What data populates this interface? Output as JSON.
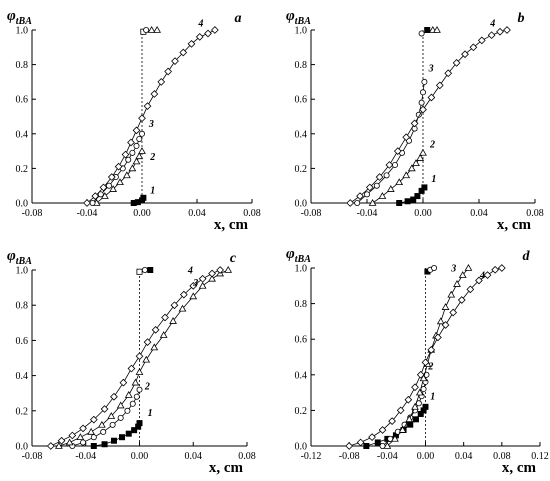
{
  "chart_data": [
    {
      "type": "line",
      "panel": "a",
      "ylabel": "φ",
      "ylabel_sub": "tBA",
      "xlabel": "x, cm",
      "xlim": [
        -0.08,
        0.08
      ],
      "ylim": [
        0,
        1.0
      ],
      "xticks": [
        "-0.08",
        "-0.04",
        "0.00",
        "0.04",
        "0.08"
      ],
      "yticks": [
        "0.0",
        "0.2",
        "0.4",
        "0.6",
        "0.8",
        "1.0"
      ],
      "vline_x": 0,
      "series": [
        {
          "name": "1",
          "marker": "square-filled",
          "x": [
            -0.006,
            -0.003,
            0.0,
            0.001
          ],
          "y": [
            0.0,
            0.005,
            0.015,
            0.03
          ]
        },
        {
          "name": "2",
          "marker": "triangle-open",
          "x": [
            -0.033,
            -0.027,
            -0.021,
            -0.016,
            -0.011,
            -0.007,
            -0.004,
            -0.002,
            0.0
          ],
          "y": [
            0.0,
            0.04,
            0.08,
            0.12,
            0.16,
            0.2,
            0.24,
            0.27,
            0.3
          ]
        },
        {
          "name": "3",
          "marker": "circle-open",
          "x": [
            -0.036,
            -0.03,
            -0.024,
            -0.019,
            -0.014,
            -0.01,
            -0.007,
            -0.004,
            -0.002,
            0.0
          ],
          "y": [
            0.0,
            0.05,
            0.1,
            0.15,
            0.2,
            0.25,
            0.29,
            0.33,
            0.37,
            0.4
          ]
        },
        {
          "name": "4",
          "marker": "diamond-open",
          "x": [
            -0.04,
            -0.034,
            -0.028,
            -0.022,
            -0.017,
            -0.012,
            -0.008,
            -0.004,
            0.0,
            0.004,
            0.009,
            0.014,
            0.019,
            0.024,
            0.03,
            0.036,
            0.042,
            0.048,
            0.053
          ],
          "y": [
            0.0,
            0.04,
            0.09,
            0.15,
            0.21,
            0.28,
            0.35,
            0.42,
            0.49,
            0.56,
            0.63,
            0.7,
            0.76,
            0.82,
            0.87,
            0.92,
            0.96,
            0.98,
            1.0
          ]
        }
      ],
      "end_markers": [
        {
          "marker": "square-open",
          "x": 0.001,
          "y": 0.99
        },
        {
          "marker": "circle-open",
          "x": 0.003,
          "y": 1.0
        },
        {
          "marker": "triangle-open",
          "x": 0.007,
          "y": 1.0
        },
        {
          "marker": "triangle-open",
          "x": 0.011,
          "y": 1.0
        }
      ],
      "labels": [
        {
          "text": "1",
          "x": 0.006,
          "y": 0.055
        },
        {
          "text": "2",
          "x": 0.006,
          "y": 0.25
        },
        {
          "text": "3",
          "x": 0.005,
          "y": 0.44
        },
        {
          "text": "4",
          "x": 0.041,
          "y": 1.02
        }
      ]
    },
    {
      "type": "line",
      "panel": "b",
      "ylabel": "φ",
      "ylabel_sub": "tBA",
      "xlabel": "x, cm",
      "xlim": [
        -0.08,
        0.08
      ],
      "ylim": [
        0,
        1.0
      ],
      "xticks": [
        "-0.08",
        "-0.04",
        "0.00",
        "0.04",
        "0.08"
      ],
      "yticks": [
        "0.0",
        "0.2",
        "0.4",
        "0.6",
        "0.8",
        "1.0"
      ],
      "vline_x": 0,
      "series": [
        {
          "name": "1",
          "marker": "square-filled",
          "x": [
            -0.017,
            -0.011,
            -0.007,
            -0.004,
            -0.001,
            0.001
          ],
          "y": [
            0.0,
            0.01,
            0.02,
            0.04,
            0.07,
            0.09
          ]
        },
        {
          "name": "2",
          "marker": "triangle-open",
          "x": [
            -0.036,
            -0.029,
            -0.023,
            -0.017,
            -0.012,
            -0.008,
            -0.005,
            -0.002,
            0.0
          ],
          "y": [
            0.0,
            0.04,
            0.08,
            0.12,
            0.16,
            0.2,
            0.23,
            0.26,
            0.29
          ]
        },
        {
          "name": "3",
          "marker": "circle-open",
          "x": [
            -0.047,
            -0.04,
            -0.033,
            -0.026,
            -0.02,
            -0.015,
            -0.01,
            -0.006,
            -0.003,
            -0.001,
            0.0,
            0.001
          ],
          "y": [
            0.0,
            0.05,
            0.1,
            0.16,
            0.22,
            0.29,
            0.36,
            0.43,
            0.51,
            0.58,
            0.64,
            0.7
          ]
        },
        {
          "name": "4",
          "marker": "diamond-open",
          "x": [
            -0.052,
            -0.045,
            -0.038,
            -0.031,
            -0.024,
            -0.018,
            -0.012,
            -0.006,
            0.0,
            0.006,
            0.012,
            0.018,
            0.024,
            0.03,
            0.036,
            0.042,
            0.049,
            0.055,
            0.06
          ],
          "y": [
            0.0,
            0.04,
            0.09,
            0.15,
            0.22,
            0.3,
            0.38,
            0.46,
            0.54,
            0.61,
            0.68,
            0.75,
            0.81,
            0.86,
            0.9,
            0.94,
            0.97,
            0.99,
            1.0
          ]
        }
      ],
      "end_markers": [
        {
          "marker": "square-filled",
          "x": 0.003,
          "y": 1.0
        },
        {
          "marker": "circle-open",
          "x": -0.001,
          "y": 0.98
        },
        {
          "marker": "triangle-open",
          "x": 0.007,
          "y": 1.0
        },
        {
          "marker": "triangle-open",
          "x": 0.01,
          "y": 1.0
        }
      ],
      "labels": [
        {
          "text": "1",
          "x": 0.006,
          "y": 0.12
        },
        {
          "text": "2",
          "x": 0.005,
          "y": 0.32
        },
        {
          "text": "3",
          "x": 0.004,
          "y": 0.76
        },
        {
          "text": "4",
          "x": 0.048,
          "y": 1.02
        }
      ]
    },
    {
      "type": "line",
      "panel": "c",
      "ylabel": "φ",
      "ylabel_sub": "tBA",
      "xlabel": "x, cm",
      "xlim": [
        -0.08,
        0.08
      ],
      "ylim": [
        0,
        1.0
      ],
      "xticks": [
        "-0.08",
        "-0.04",
        "0.00",
        "0.04",
        "0.08"
      ],
      "yticks": [
        "0.0",
        "0.2",
        "0.4",
        "0.6",
        "0.8",
        "1.0"
      ],
      "vline_x": 0,
      "series": [
        {
          "name": "1",
          "marker": "square-filled",
          "x": [
            -0.034,
            -0.026,
            -0.019,
            -0.013,
            -0.008,
            -0.004,
            -0.001,
            0.0
          ],
          "y": [
            0.0,
            0.01,
            0.03,
            0.05,
            0.07,
            0.09,
            0.11,
            0.13
          ]
        },
        {
          "name": "2",
          "marker": "circle-open",
          "x": [
            -0.05,
            -0.042,
            -0.034,
            -0.027,
            -0.02,
            -0.014,
            -0.009,
            -0.005,
            -0.002,
            0.0
          ],
          "y": [
            0.0,
            0.02,
            0.05,
            0.08,
            0.12,
            0.16,
            0.2,
            0.24,
            0.28,
            0.32
          ]
        },
        {
          "name": "3",
          "marker": "triangle-open",
          "x": [
            -0.06,
            -0.052,
            -0.044,
            -0.036,
            -0.028,
            -0.021,
            -0.014,
            -0.008,
            -0.003,
            0.0,
            0.005,
            0.011,
            0.018,
            0.025,
            0.032,
            0.04,
            0.047,
            0.054,
            0.06,
            0.066
          ],
          "y": [
            0.0,
            0.02,
            0.05,
            0.08,
            0.12,
            0.17,
            0.23,
            0.29,
            0.36,
            0.42,
            0.49,
            0.56,
            0.63,
            0.71,
            0.78,
            0.85,
            0.91,
            0.95,
            0.98,
            1.0
          ]
        },
        {
          "name": "4",
          "marker": "diamond-open",
          "x": [
            -0.066,
            -0.058,
            -0.05,
            -0.042,
            -0.034,
            -0.026,
            -0.019,
            -0.012,
            -0.006,
            0.0,
            0.006,
            0.012,
            0.019,
            0.026,
            0.033,
            0.04,
            0.047,
            0.054,
            0.06
          ],
          "y": [
            0.0,
            0.03,
            0.06,
            0.1,
            0.15,
            0.21,
            0.28,
            0.36,
            0.44,
            0.51,
            0.59,
            0.66,
            0.73,
            0.8,
            0.86,
            0.91,
            0.95,
            0.98,
            1.0
          ]
        }
      ],
      "end_markers": [
        {
          "marker": "square-open",
          "x": 0.0,
          "y": 0.99
        },
        {
          "marker": "circle-open",
          "x": 0.004,
          "y": 1.0
        },
        {
          "marker": "square-filled",
          "x": 0.008,
          "y": 1.0
        }
      ],
      "labels": [
        {
          "text": "1",
          "x": 0.006,
          "y": 0.17
        },
        {
          "text": "2",
          "x": 0.004,
          "y": 0.32
        },
        {
          "text": "3",
          "x": 0.04,
          "y": 0.91
        },
        {
          "text": "4",
          "x": 0.036,
          "y": 0.98
        }
      ]
    },
    {
      "type": "line",
      "panel": "d",
      "ylabel": "φ",
      "ylabel_sub": "tBA",
      "xlabel": "x, cm",
      "xlim": [
        -0.12,
        0.12
      ],
      "ylim": [
        0,
        1.0
      ],
      "xticks": [
        "-0.12",
        "-0.08",
        "-0.04",
        "0.00",
        "0.04",
        "0.08",
        "0.12"
      ],
      "yticks": [
        "0.0",
        "0.2",
        "0.4",
        "0.6",
        "0.8",
        "1.0"
      ],
      "vline_x": 0,
      "series": [
        {
          "name": "1",
          "marker": "square-filled",
          "x": [
            -0.062,
            -0.05,
            -0.04,
            -0.031,
            -0.023,
            -0.016,
            -0.01,
            -0.005,
            -0.002,
            0.0
          ],
          "y": [
            0.0,
            0.02,
            0.04,
            0.06,
            0.09,
            0.12,
            0.15,
            0.18,
            0.2,
            0.22
          ]
        },
        {
          "name": "2",
          "marker": "circle-open",
          "x": [
            -0.045,
            -0.037,
            -0.029,
            -0.022,
            -0.016,
            -0.011,
            -0.007,
            -0.004,
            -0.002,
            0.0,
            0.001
          ],
          "y": [
            0.0,
            0.04,
            0.08,
            0.12,
            0.16,
            0.2,
            0.24,
            0.28,
            0.32,
            0.36,
            0.4
          ]
        },
        {
          "name": "3",
          "marker": "triangle-open",
          "x": [
            -0.04,
            -0.032,
            -0.024,
            -0.017,
            -0.011,
            -0.006,
            -0.002,
            0.002,
            0.006,
            0.011,
            0.016,
            0.021,
            0.027,
            0.033,
            0.039,
            0.045
          ],
          "y": [
            0.0,
            0.04,
            0.09,
            0.15,
            0.22,
            0.3,
            0.38,
            0.46,
            0.54,
            0.62,
            0.7,
            0.78,
            0.85,
            0.91,
            0.96,
            1.0
          ]
        },
        {
          "name": "4",
          "marker": "diamond-open",
          "x": [
            -0.08,
            -0.068,
            -0.056,
            -0.045,
            -0.035,
            -0.026,
            -0.018,
            -0.011,
            -0.005,
            0.0,
            0.006,
            0.013,
            0.021,
            0.029,
            0.038,
            0.047,
            0.056,
            0.065,
            0.073,
            0.08
          ],
          "y": [
            0.0,
            0.02,
            0.05,
            0.09,
            0.14,
            0.2,
            0.26,
            0.33,
            0.4,
            0.47,
            0.54,
            0.61,
            0.68,
            0.75,
            0.82,
            0.88,
            0.93,
            0.96,
            0.99,
            1.0
          ]
        }
      ],
      "end_markers": [
        {
          "marker": "square-filled",
          "x": 0.002,
          "y": 0.98
        },
        {
          "marker": "circle-open",
          "x": 0.005,
          "y": 0.99
        },
        {
          "marker": "circle-open",
          "x": 0.009,
          "y": 1.0
        }
      ],
      "labels": [
        {
          "text": "1",
          "x": 0.005,
          "y": 0.26
        },
        {
          "text": "2",
          "x": 0.003,
          "y": 0.43
        },
        {
          "text": "3",
          "x": 0.027,
          "y": 0.98
        },
        {
          "text": "4",
          "x": 0.057,
          "y": 0.94
        }
      ]
    }
  ]
}
